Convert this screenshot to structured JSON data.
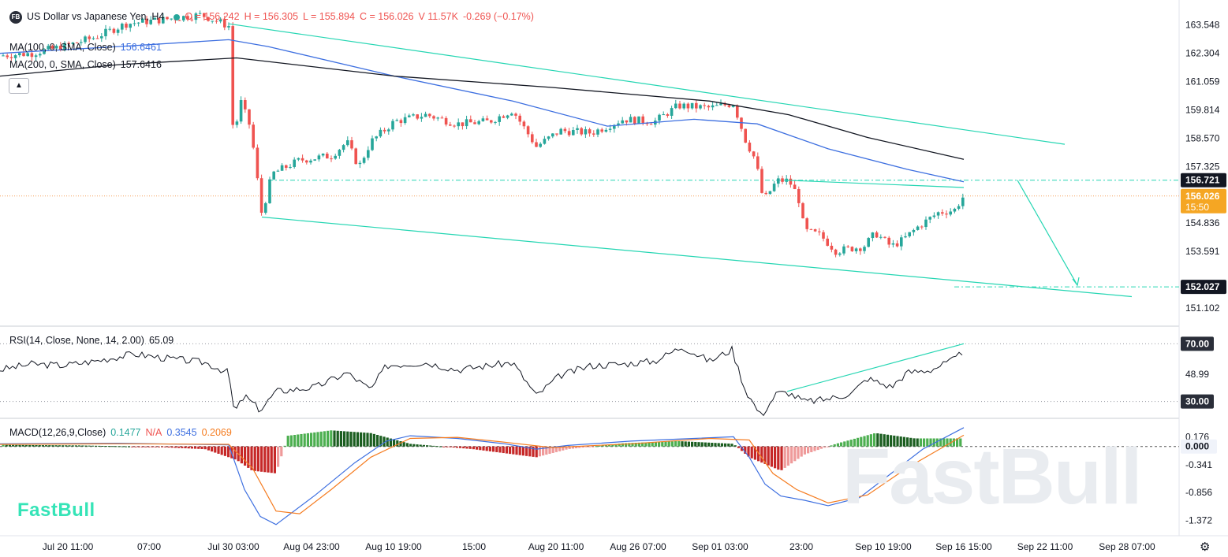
{
  "header": {
    "badge": "FB",
    "title": "US Dollar vs Japanese Yen, H4",
    "open": "O = 156.242",
    "high": "H = 156.305",
    "low": "L = 155.894",
    "close": "C = 156.026",
    "volume": "V 11.57K",
    "change": "-0.269 (−0.17%)"
  },
  "indicators": {
    "ma100": {
      "label": "MA(100, 0, SMA, Close)",
      "value": "156.6461",
      "color": "#3d6fe0"
    },
    "ma200": {
      "label": "MA(200, 0, SMA, Close)",
      "value": "157.6416",
      "color": "#131722"
    },
    "rsi": {
      "label": "RSI(14, Close, None, 14, 2.00)",
      "value": "65.09"
    },
    "macd": {
      "label": "MACD(12,26,9,Close)",
      "hist": "0.1477",
      "na": "N/A",
      "macd": "0.3545",
      "signal": "0.2069"
    }
  },
  "brand": "FastBull",
  "watermark": "FastBull",
  "colors": {
    "up": "#26a69a",
    "down": "#ef5350",
    "channel": "#26d6b3",
    "ma100": "#3d6fe0",
    "ma200": "#131722",
    "signal": "#f57c20"
  },
  "chart_data": {
    "type": "candlestick",
    "symbol": "USDJPY",
    "timeframe": "H4",
    "y_ticks": [
      "163.548",
      "162.304",
      "161.059",
      "159.814",
      "158.570",
      "157.325",
      "154.836",
      "153.591",
      "151.102"
    ],
    "ylim": [
      150.3,
      164.3
    ],
    "x_ticks": [
      "Jul 20 11:00",
      "07:00",
      "Jul 30 03:00",
      "Aug 04 23:00",
      "Aug 10 19:00",
      "15:00",
      "Aug 20 11:00",
      "Aug 26 07:00",
      "Sep 01 03:00",
      "23:00",
      "Sep 10 19:00",
      "Sep 16 15:00",
      "Sep 22 11:00",
      "Sep 28 07:00"
    ],
    "price_labels": [
      {
        "text": "156.721",
        "price": 156.721,
        "style": "dark"
      },
      {
        "text": "156.026",
        "price": 156.026,
        "style": "orange"
      },
      {
        "text": "15:50",
        "style": "orange-sub"
      },
      {
        "text": "152.027",
        "price": 152.027,
        "style": "dark"
      }
    ],
    "price_path": [
      [
        0,
        162.2
      ],
      [
        40,
        162.3
      ],
      [
        80,
        162.6
      ],
      [
        120,
        163.0
      ],
      [
        160,
        163.6
      ],
      [
        210,
        163.8
      ],
      [
        255,
        164.0
      ],
      [
        290,
        163.5
      ],
      [
        296,
        158.5
      ],
      [
        305,
        160.2
      ],
      [
        318,
        159.0
      ],
      [
        332,
        155.2
      ],
      [
        345,
        157.0
      ],
      [
        380,
        157.6
      ],
      [
        420,
        157.8
      ],
      [
        440,
        158.4
      ],
      [
        455,
        157.3
      ],
      [
        470,
        158.4
      ],
      [
        500,
        159.3
      ],
      [
        540,
        159.6
      ],
      [
        580,
        159.2
      ],
      [
        620,
        159.3
      ],
      [
        650,
        159.8
      ],
      [
        680,
        158.2
      ],
      [
        710,
        158.9
      ],
      [
        750,
        158.8
      ],
      [
        790,
        159.4
      ],
      [
        830,
        159.3
      ],
      [
        860,
        160.0
      ],
      [
        900,
        159.9
      ],
      [
        930,
        160.1
      ],
      [
        945,
        158.5
      ],
      [
        958,
        157.6
      ],
      [
        968,
        155.8
      ],
      [
        985,
        156.7
      ],
      [
        1000,
        156.7
      ],
      [
        1012,
        156.0
      ],
      [
        1020,
        154.5
      ],
      [
        1040,
        154.3
      ],
      [
        1060,
        153.6
      ],
      [
        1075,
        153.7
      ],
      [
        1095,
        153.8
      ],
      [
        1110,
        154.4
      ],
      [
        1130,
        153.8
      ],
      [
        1145,
        154.1
      ],
      [
        1165,
        154.7
      ],
      [
        1190,
        155.3
      ],
      [
        1210,
        155.4
      ],
      [
        1222,
        156.03
      ]
    ],
    "ma100_path": [
      [
        0,
        162.3
      ],
      [
        150,
        162.6
      ],
      [
        290,
        162.9
      ],
      [
        340,
        162.6
      ],
      [
        500,
        161.3
      ],
      [
        650,
        160.2
      ],
      [
        770,
        159.1
      ],
      [
        880,
        159.4
      ],
      [
        960,
        159.2
      ],
      [
        1050,
        158.1
      ],
      [
        1150,
        157.2
      ],
      [
        1222,
        156.65
      ]
    ],
    "ma200_path": [
      [
        0,
        161.3
      ],
      [
        150,
        161.8
      ],
      [
        300,
        162.1
      ],
      [
        500,
        161.3
      ],
      [
        700,
        160.8
      ],
      [
        900,
        160.2
      ],
      [
        1000,
        159.6
      ],
      [
        1100,
        158.6
      ],
      [
        1222,
        157.64
      ]
    ],
    "channel_upper": [
      [
        290,
        163.6
      ],
      [
        1350,
        158.3
      ]
    ],
    "channel_lower": [
      [
        332,
        155.1
      ],
      [
        1435,
        151.6
      ]
    ],
    "wedge_top": [
      [
        995,
        156.72
      ],
      [
        1222,
        156.4
      ]
    ],
    "level_dashed_upper": {
      "price": 156.721,
      "x_from": 340,
      "x_to": 1495
    },
    "level_dashed_lower": {
      "price": 152.027,
      "x_from": 1210,
      "x_to": 1495
    },
    "current_price_line": 156.026,
    "forecast_arrow": [
      [
        1290,
        156.72
      ],
      [
        1366,
        152.1
      ]
    ],
    "rsi": {
      "ylim": [
        20,
        80
      ],
      "levels": [
        {
          "value": 70,
          "label": "70.00"
        },
        {
          "value": 30,
          "label": "30.00"
        }
      ],
      "mid_label": "48.99",
      "path": [
        [
          0,
          52
        ],
        [
          40,
          56
        ],
        [
          80,
          55
        ],
        [
          120,
          58
        ],
        [
          170,
          63
        ],
        [
          210,
          60
        ],
        [
          260,
          57
        ],
        [
          290,
          50
        ],
        [
          297,
          22
        ],
        [
          310,
          34
        ],
        [
          330,
          24
        ],
        [
          350,
          37
        ],
        [
          400,
          40
        ],
        [
          440,
          50
        ],
        [
          470,
          38
        ],
        [
          490,
          55
        ],
        [
          540,
          57
        ],
        [
          580,
          52
        ],
        [
          620,
          55
        ],
        [
          650,
          57
        ],
        [
          680,
          34
        ],
        [
          710,
          48
        ],
        [
          750,
          55
        ],
        [
          790,
          56
        ],
        [
          830,
          58
        ],
        [
          865,
          68
        ],
        [
          900,
          58
        ],
        [
          928,
          66
        ],
        [
          945,
          38
        ],
        [
          965,
          20
        ],
        [
          985,
          36
        ],
        [
          1000,
          36
        ],
        [
          1020,
          30
        ],
        [
          1040,
          31
        ],
        [
          1060,
          33
        ],
        [
          1080,
          36
        ],
        [
          1100,
          46
        ],
        [
          1130,
          40
        ],
        [
          1150,
          50
        ],
        [
          1180,
          52
        ],
        [
          1210,
          59
        ],
        [
          1222,
          65.09
        ]
      ],
      "divergence": [
        [
          998,
          37
        ],
        [
          1222,
          70
        ]
      ]
    },
    "macd": {
      "ylim": [
        -1.6,
        0.45
      ],
      "ticks": [
        "0.176",
        "0.000",
        "-0.341",
        "-0.856",
        "-1.372"
      ],
      "macd_path": [
        [
          0,
          0.05
        ],
        [
          150,
          0.06
        ],
        [
          290,
          0.03
        ],
        [
          310,
          -0.8
        ],
        [
          330,
          -1.3
        ],
        [
          350,
          -1.45
        ],
        [
          400,
          -0.9
        ],
        [
          450,
          -0.3
        ],
        [
          490,
          0.1
        ],
        [
          520,
          0.2
        ],
        [
          580,
          0.15
        ],
        [
          640,
          0.05
        ],
        [
          680,
          -0.05
        ],
        [
          720,
          0.02
        ],
        [
          800,
          0.1
        ],
        [
          880,
          0.15
        ],
        [
          930,
          0.18
        ],
        [
          950,
          -0.2
        ],
        [
          970,
          -0.7
        ],
        [
          990,
          -0.92
        ],
        [
          1020,
          -1.0
        ],
        [
          1050,
          -1.1
        ],
        [
          1090,
          -0.95
        ],
        [
          1130,
          -0.5
        ],
        [
          1170,
          -0.05
        ],
        [
          1222,
          0.35
        ]
      ],
      "signal_path": [
        [
          0,
          0.04
        ],
        [
          150,
          0.05
        ],
        [
          290,
          0.04
        ],
        [
          320,
          -0.4
        ],
        [
          350,
          -1.2
        ],
        [
          380,
          -1.25
        ],
        [
          420,
          -0.8
        ],
        [
          470,
          -0.2
        ],
        [
          520,
          0.15
        ],
        [
          580,
          0.17
        ],
        [
          640,
          0.08
        ],
        [
          700,
          -0.02
        ],
        [
          800,
          0.05
        ],
        [
          900,
          0.15
        ],
        [
          950,
          0.12
        ],
        [
          980,
          -0.5
        ],
        [
          1010,
          -0.8
        ],
        [
          1050,
          -1.05
        ],
        [
          1100,
          -0.9
        ],
        [
          1150,
          -0.4
        ],
        [
          1222,
          0.21
        ]
      ],
      "histogram_segments": [
        [
          0,
          0.03
        ],
        [
          100,
          0.02
        ],
        [
          200,
          -0.01
        ],
        [
          260,
          -0.05
        ],
        [
          300,
          -0.25
        ],
        [
          320,
          -0.45
        ],
        [
          350,
          -0.5
        ],
        [
          365,
          0.2
        ],
        [
          420,
          0.3
        ],
        [
          470,
          0.25
        ],
        [
          520,
          0.05
        ],
        [
          600,
          -0.05
        ],
        [
          680,
          -0.2
        ],
        [
          720,
          -0.05
        ],
        [
          790,
          0.06
        ],
        [
          860,
          0.1
        ],
        [
          930,
          0.05
        ],
        [
          950,
          -0.2
        ],
        [
          990,
          -0.45
        ],
        [
          1020,
          -0.15
        ],
        [
          1060,
          0.05
        ],
        [
          1110,
          0.25
        ],
        [
          1160,
          0.15
        ],
        [
          1222,
          0.15
        ]
      ]
    }
  }
}
